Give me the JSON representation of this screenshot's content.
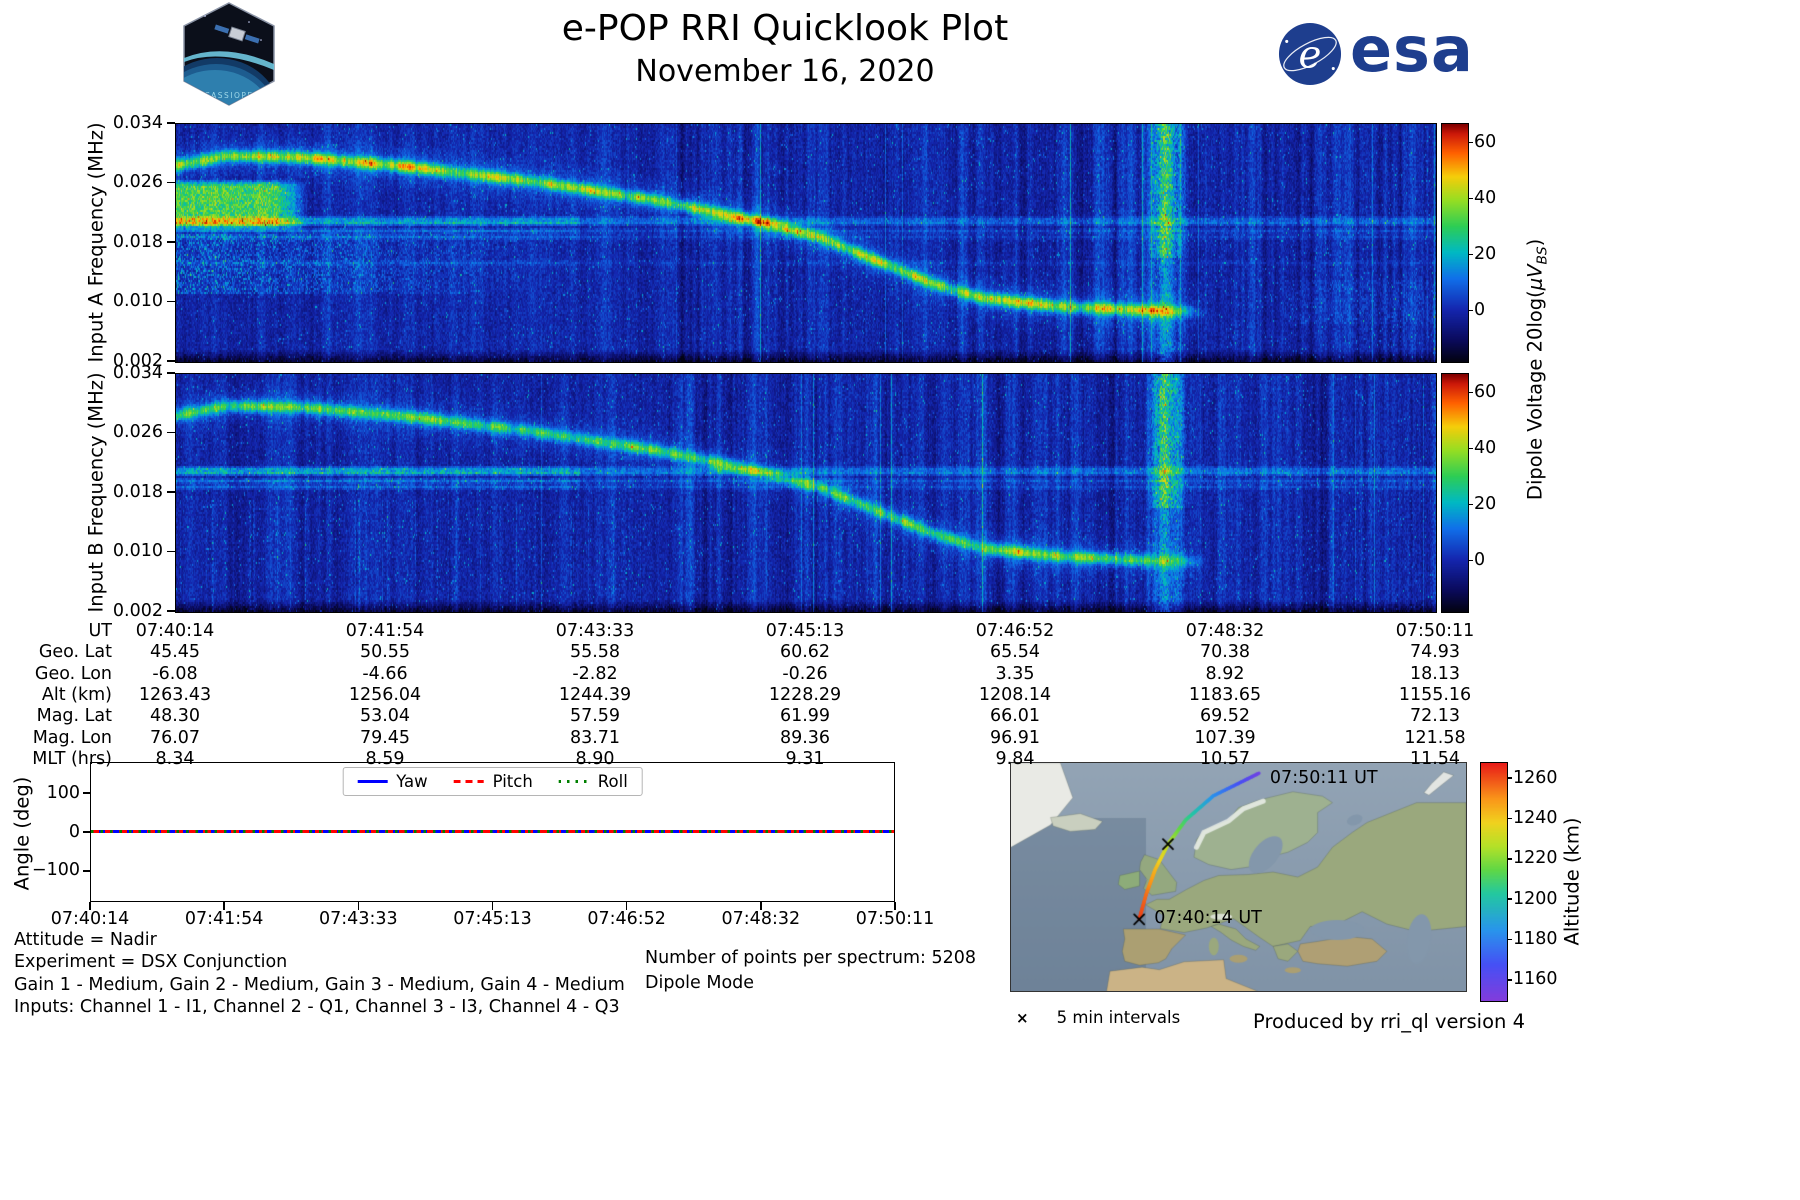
{
  "header": {
    "title": "e-POP RRI Quicklook Plot",
    "date": "November 16, 2020",
    "patch_label": "CASSIOPE",
    "esa_emblem_char": "e",
    "esa_wordmark": "esa"
  },
  "dipole_colorbar": {
    "label_parts": {
      "prefix": "Dipole Voltage 20log(",
      "unit": "μV",
      "sub": "BS",
      "close": ")"
    }
  },
  "attitude": {
    "ytick_labels": [
      "100",
      "0",
      "−100"
    ]
  },
  "ephemeris": {
    "rows": [
      {
        "label": "UT",
        "values": [
          "07:40:14",
          "07:41:54",
          "07:43:33",
          "07:45:13",
          "07:46:52",
          "07:48:32",
          "07:50:11"
        ]
      },
      {
        "label": "Geo. Lat",
        "values": [
          "45.45",
          "50.55",
          "55.58",
          "60.62",
          "65.54",
          "70.38",
          "74.93"
        ]
      },
      {
        "label": "Geo. Lon",
        "values": [
          "-6.08",
          "-4.66",
          "-2.82",
          "-0.26",
          "3.35",
          "8.92",
          "18.13"
        ]
      },
      {
        "label": "Alt (km)",
        "values": [
          "1263.43",
          "1256.04",
          "1244.39",
          "1228.29",
          "1208.14",
          "1183.65",
          "1155.16"
        ]
      },
      {
        "label": "Mag. Lat",
        "values": [
          "48.30",
          "53.04",
          "57.59",
          "61.99",
          "66.01",
          "69.52",
          "72.13"
        ]
      },
      {
        "label": "Mag. Lon",
        "values": [
          "76.07",
          "79.45",
          "83.71",
          "89.36",
          "96.91",
          "107.39",
          "121.58"
        ]
      },
      {
        "label": "MLT (hrs)",
        "values": [
          "8.34",
          "8.59",
          "8.90",
          "9.31",
          "9.84",
          "10.57",
          "11.54"
        ]
      }
    ]
  },
  "notes": {
    "left": [
      "Attitude = Nadir",
      "Experiment = DSX Conjunction",
      "Gain 1 - Medium, Gain 2 - Medium, Gain 3 - Medium, Gain 4 - Medium",
      "Inputs: Channel 1 - I1, Channel 2 - Q1, Channel 3 - I3, Channel 4 - Q3"
    ],
    "center": [
      "Number of points per spectrum: 5208",
      "Dipole Mode"
    ],
    "produced": "Produced by rri_ql version 4"
  },
  "chart_data": [
    {
      "type": "heatmap",
      "name": "input_a_spectrogram",
      "xlabel": "UT",
      "ylabel": "Input A Frequency (MHz)",
      "x_ticks": [
        "07:40:14",
        "07:41:54",
        "07:43:33",
        "07:45:13",
        "07:46:52",
        "07:48:32",
        "07:50:11"
      ],
      "ylim_mhz": [
        0.002,
        0.034
      ],
      "yticks_mhz": [
        0.034,
        0.026,
        0.018,
        0.01,
        0.002
      ],
      "value_label": "Dipole Voltage 20log(μV_BS)",
      "value_ticks": [
        60,
        40,
        20,
        0
      ],
      "clim": [
        -18,
        67
      ],
      "features": {
        "chirp_trace": [
          [
            0.0,
            0.0285
          ],
          [
            0.04,
            0.0298
          ],
          [
            0.1,
            0.0296
          ],
          [
            0.18,
            0.0284
          ],
          [
            0.28,
            0.0264
          ],
          [
            0.38,
            0.0238
          ],
          [
            0.46,
            0.021
          ],
          [
            0.51,
            0.0188
          ],
          [
            0.55,
            0.016
          ],
          [
            0.6,
            0.0125
          ],
          [
            0.64,
            0.0105
          ],
          [
            0.7,
            0.0094
          ],
          [
            0.76,
            0.0089
          ],
          [
            0.82,
            0.0086
          ]
        ],
        "chirp_peak_db": 42,
        "chirp_end_frac": 0.82,
        "carrier_lines": [
          {
            "mhz": 0.0213,
            "db": 14
          },
          {
            "mhz": 0.0206,
            "db": 18
          },
          {
            "mhz": 0.0197,
            "db": 10
          },
          {
            "mhz": 0.0187,
            "db": 8
          },
          {
            "mhz": 0.0152,
            "db": 5
          }
        ],
        "broadband_blob": {
          "x_end_frac": 0.105,
          "mhz": [
            0.0195,
            0.0267
          ],
          "db": 36
        },
        "diffuse_haze": {
          "x_end_frac": 0.32,
          "mhz": [
            0.011,
            0.0192
          ],
          "db": 15
        },
        "vertical_event_frac": 0.785,
        "right_haze": true,
        "noise_streaks": false
      }
    },
    {
      "type": "heatmap",
      "name": "input_b_spectrogram",
      "xlabel": "UT",
      "ylabel": "Input B Frequency (MHz)",
      "x_ticks": [
        "07:40:14",
        "07:41:54",
        "07:43:33",
        "07:45:13",
        "07:46:52",
        "07:48:32",
        "07:50:11"
      ],
      "ylim_mhz": [
        0.002,
        0.034
      ],
      "yticks_mhz": [
        0.034,
        0.026,
        0.018,
        0.01,
        0.002
      ],
      "value_label": "Dipole Voltage 20log(μV_BS)",
      "value_ticks": [
        60,
        40,
        20,
        0
      ],
      "clim": [
        -18,
        67
      ],
      "features": {
        "chirp_trace": [
          [
            0.0,
            0.0285
          ],
          [
            0.04,
            0.0298
          ],
          [
            0.1,
            0.0296
          ],
          [
            0.18,
            0.0284
          ],
          [
            0.28,
            0.0264
          ],
          [
            0.38,
            0.0238
          ],
          [
            0.46,
            0.021
          ],
          [
            0.51,
            0.0188
          ],
          [
            0.55,
            0.016
          ],
          [
            0.6,
            0.0125
          ],
          [
            0.64,
            0.0105
          ],
          [
            0.7,
            0.0094
          ],
          [
            0.76,
            0.0089
          ],
          [
            0.82,
            0.0086
          ]
        ],
        "chirp_peak_db": 34,
        "chirp_end_frac": 0.82,
        "carrier_lines": [
          {
            "mhz": 0.0213,
            "db": 16
          },
          {
            "mhz": 0.0206,
            "db": 20
          },
          {
            "mhz": 0.0197,
            "db": 12
          },
          {
            "mhz": 0.0187,
            "db": 10
          }
        ],
        "broadband_blob": null,
        "diffuse_haze": null,
        "vertical_event_frac": 0.785,
        "right_haze": false,
        "noise_streaks": true
      }
    },
    {
      "type": "line",
      "name": "attitude_angles",
      "ylabel": "Angle (deg)",
      "ylim": [
        -180,
        180
      ],
      "yticks": [
        100,
        0,
        -100
      ],
      "xticks": [
        "07:40:14",
        "07:41:54",
        "07:43:33",
        "07:45:13",
        "07:46:52",
        "07:48:32",
        "07:50:11"
      ],
      "legend_position": "upper center",
      "series": [
        {
          "name": "Yaw",
          "color": "#0000ff",
          "style": "solid",
          "values": [
            0,
            0
          ]
        },
        {
          "name": "Pitch",
          "color": "#ff0000",
          "style": "dashed",
          "values": [
            0,
            0
          ]
        },
        {
          "name": "Roll",
          "color": "#008000",
          "style": "dotted",
          "values": [
            0,
            0
          ]
        }
      ]
    },
    {
      "type": "map_track",
      "name": "ground_track_map",
      "region": "Europe / North Atlantic",
      "track": {
        "times": [
          "07:40:14",
          "07:41:54",
          "07:43:33",
          "07:45:13",
          "07:46:52",
          "07:48:32",
          "07:50:11"
        ],
        "lat": [
          45.45,
          50.55,
          55.58,
          60.62,
          65.54,
          70.38,
          74.93
        ],
        "lon": [
          -6.08,
          -4.66,
          -2.82,
          -0.26,
          3.35,
          8.92,
          18.13
        ],
        "alt_km": [
          1263.43,
          1256.04,
          1244.39,
          1228.29,
          1208.14,
          1183.65,
          1155.16
        ]
      },
      "colorbar": {
        "label": "Altitude (km)",
        "ticks": [
          1260,
          1240,
          1220,
          1200,
          1180,
          1160
        ],
        "clim": [
          1150,
          1268
        ]
      },
      "interval_markers": {
        "symbol": "×",
        "note": "5 min intervals",
        "at_times": [
          "07:40:14",
          "07:45:13"
        ]
      },
      "start_label": "07:40:14 UT",
      "end_label": "07:50:11 UT"
    }
  ]
}
